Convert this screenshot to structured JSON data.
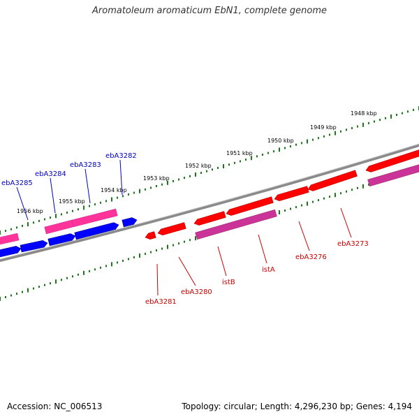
{
  "title": "Aromatoleum aromaticum EbN1, complete genome",
  "footer": {
    "accession": "Accession: NC_006513",
    "summary": "Topology: circular; Length: 4,296,230 bp; Genes: 4,194"
  },
  "colors": {
    "backbone": "#8a8a8a",
    "tick": "#1a7a1a",
    "forward_gene": "#ff0000",
    "forward_dark": "#b30000",
    "reverse_gene": "#0000ff",
    "reverse_dark": "#000099",
    "pink": "#ff3399",
    "magenta": "#cc3399",
    "label_blue": "#0000cc",
    "label_red": "#cc0000"
  },
  "scale_labels": [
    "1948 kbp",
    "1949 kbp",
    "1950 kbp",
    "1951 kbp",
    "1952 kbp",
    "1953 kbp",
    "1954 kbp",
    "1955 kbp",
    "1956 kbp"
  ],
  "gene_labels_blue": [
    "ebA3285",
    "ebA3284",
    "ebA3283",
    "ebA3282"
  ],
  "gene_labels_red": [
    "ebA3281",
    "ebA3280",
    "istB",
    "istA",
    "ebA3276",
    "ebA3273"
  ]
}
